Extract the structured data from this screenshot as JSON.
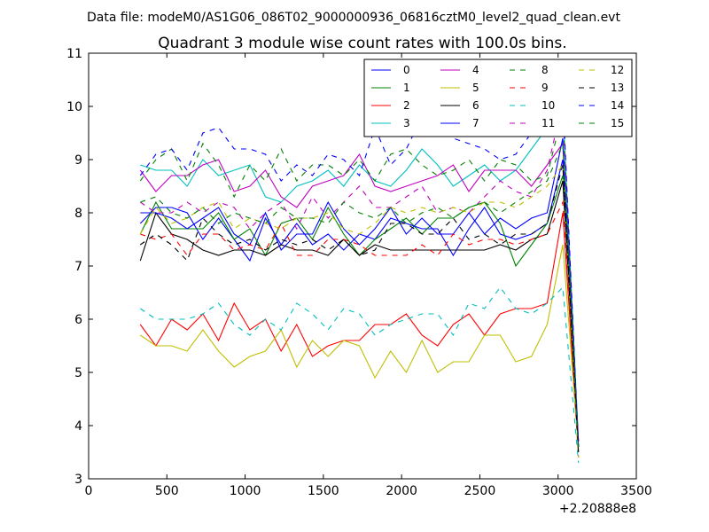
{
  "suptitle": "Data file: modeM0/AS1G06_086T02_9000000936_06816cztM0_level2_quad_clean.evt",
  "offset_label": "+2.20888e8",
  "chart_data": {
    "type": "line",
    "title": "Quadrant 3 module wise count rates with 100.0s bins.",
    "xlabel": "",
    "ylabel": "",
    "xlim": [
      0,
      3500
    ],
    "ylim": [
      3,
      11
    ],
    "x_ticks": [
      0,
      500,
      1000,
      1500,
      2000,
      2500,
      3000,
      3500
    ],
    "y_ticks": [
      3,
      4,
      5,
      6,
      7,
      8,
      9,
      10,
      11
    ],
    "legend_position": "top-right",
    "legend_columns": 4,
    "x": [
      330,
      430,
      530,
      630,
      730,
      830,
      930,
      1030,
      1130,
      1230,
      1330,
      1430,
      1530,
      1630,
      1730,
      1830,
      1930,
      2030,
      2130,
      2230,
      2330,
      2430,
      2530,
      2630,
      2730,
      2830,
      2930,
      3030,
      3130
    ],
    "series": [
      {
        "name": "0",
        "color": "#0000ff",
        "style": "solid",
        "values": [
          7.8,
          8.1,
          8.1,
          8.0,
          7.5,
          7.9,
          7.5,
          7.1,
          7.9,
          7.4,
          7.8,
          7.4,
          7.6,
          7.3,
          7.6,
          7.5,
          7.9,
          7.8,
          7.7,
          7.7,
          7.2,
          7.7,
          8.1,
          7.6,
          7.5,
          7.6,
          7.8,
          9.0,
          3.7
        ]
      },
      {
        "name": "1",
        "color": "#008000",
        "style": "solid",
        "values": [
          7.6,
          8.2,
          7.7,
          7.7,
          7.7,
          8.0,
          7.5,
          7.7,
          7.2,
          7.8,
          7.9,
          7.5,
          8.1,
          7.6,
          7.2,
          7.5,
          7.7,
          7.9,
          7.6,
          7.9,
          7.9,
          8.1,
          8.2,
          7.8,
          7.0,
          7.4,
          7.8,
          8.7,
          3.6
        ]
      },
      {
        "name": "2",
        "color": "#ff0000",
        "style": "solid",
        "values": [
          5.9,
          5.5,
          6.0,
          5.8,
          6.1,
          5.6,
          6.3,
          5.8,
          6.0,
          5.4,
          5.9,
          5.3,
          5.5,
          5.6,
          5.6,
          5.9,
          5.9,
          6.1,
          5.7,
          5.5,
          5.9,
          6.1,
          5.7,
          6.1,
          6.2,
          6.2,
          6.3,
          8.0,
          3.6
        ]
      },
      {
        "name": "3",
        "color": "#00bfbf",
        "style": "solid",
        "values": [
          8.9,
          8.8,
          8.8,
          8.5,
          9.0,
          8.7,
          8.8,
          8.9,
          8.3,
          8.2,
          8.5,
          8.6,
          8.8,
          8.5,
          8.9,
          8.6,
          8.5,
          8.8,
          9.2,
          8.9,
          8.5,
          8.7,
          8.9,
          8.6,
          8.8,
          9.2,
          9.6,
          10.0,
          3.7
        ]
      },
      {
        "name": "4",
        "color": "#bf00bf",
        "style": "solid",
        "values": [
          8.8,
          8.4,
          8.7,
          8.7,
          8.9,
          9.0,
          8.4,
          8.5,
          8.8,
          8.3,
          8.1,
          8.5,
          8.6,
          8.7,
          9.1,
          8.5,
          8.4,
          8.5,
          8.6,
          8.7,
          8.9,
          8.4,
          8.8,
          8.8,
          8.8,
          8.5,
          8.9,
          9.3,
          3.7
        ]
      },
      {
        "name": "5",
        "color": "#bfbf00",
        "style": "solid",
        "values": [
          5.7,
          5.5,
          5.5,
          5.4,
          5.8,
          5.4,
          5.1,
          5.3,
          5.4,
          5.8,
          5.1,
          5.6,
          5.3,
          5.6,
          5.5,
          4.9,
          5.4,
          5.0,
          5.6,
          5.0,
          5.2,
          5.2,
          5.7,
          5.7,
          5.2,
          5.3,
          5.9,
          7.4,
          3.6
        ]
      },
      {
        "name": "6",
        "color": "#000000",
        "style": "solid",
        "values": [
          7.1,
          8.0,
          7.6,
          7.5,
          7.3,
          7.2,
          7.3,
          7.3,
          7.2,
          7.4,
          7.3,
          7.3,
          7.2,
          7.5,
          7.2,
          7.4,
          7.3,
          7.3,
          7.3,
          7.3,
          7.3,
          7.3,
          7.3,
          7.4,
          7.3,
          7.5,
          7.6,
          8.6,
          3.6
        ]
      },
      {
        "name": "7",
        "color": "#0000ff",
        "style": "solid",
        "values": [
          8.0,
          8.0,
          7.9,
          7.7,
          7.9,
          8.1,
          7.6,
          7.4,
          8.0,
          7.3,
          7.6,
          7.6,
          8.2,
          7.7,
          7.4,
          7.7,
          8.1,
          7.6,
          7.9,
          7.6,
          7.6,
          8.0,
          7.6,
          7.9,
          7.7,
          7.9,
          8.0,
          9.4,
          3.6
        ]
      },
      {
        "name": "8",
        "color": "#008000",
        "style": "dashed",
        "values": [
          8.6,
          9.0,
          9.2,
          8.6,
          9.3,
          8.9,
          8.3,
          8.9,
          8.6,
          9.2,
          8.6,
          8.9,
          8.9,
          8.7,
          9.0,
          8.6,
          9.1,
          9.2,
          8.9,
          8.7,
          8.8,
          9.0,
          8.6,
          9.0,
          8.9,
          8.6,
          8.7,
          9.9,
          3.5
        ]
      },
      {
        "name": "9",
        "color": "#ff0000",
        "style": "dashed",
        "values": [
          7.6,
          7.5,
          7.6,
          7.2,
          7.6,
          7.6,
          7.3,
          7.4,
          7.3,
          7.8,
          7.2,
          7.2,
          7.5,
          7.5,
          7.4,
          7.2,
          7.2,
          7.2,
          7.4,
          7.2,
          7.6,
          7.4,
          7.5,
          7.5,
          7.4,
          7.5,
          7.6,
          8.2,
          3.4
        ]
      },
      {
        "name": "10",
        "color": "#00bfbf",
        "style": "dashed",
        "values": [
          6.2,
          6.0,
          6.0,
          6.0,
          6.1,
          6.3,
          5.9,
          5.7,
          6.0,
          5.8,
          6.3,
          6.1,
          5.8,
          6.2,
          6.1,
          5.7,
          5.9,
          6.0,
          6.1,
          6.1,
          5.7,
          6.3,
          6.2,
          6.6,
          6.2,
          6.1,
          6.3,
          6.6,
          3.3
        ]
      },
      {
        "name": "11",
        "color": "#bf00bf",
        "style": "dashed",
        "values": [
          8.2,
          8.0,
          8.0,
          8.2,
          8.0,
          8.2,
          8.1,
          7.7,
          8.0,
          8.2,
          7.7,
          8.3,
          7.9,
          8.2,
          8.5,
          8.1,
          8.1,
          8.3,
          8.5,
          8.0,
          8.1,
          8.0,
          8.3,
          8.6,
          8.4,
          8.3,
          8.8,
          10.1,
          3.5
        ]
      },
      {
        "name": "12",
        "color": "#bfbf00",
        "style": "dashed",
        "values": [
          7.6,
          8.1,
          7.8,
          7.9,
          8.1,
          8.2,
          7.7,
          7.9,
          7.8,
          7.7,
          7.9,
          7.9,
          8.0,
          7.7,
          7.6,
          7.8,
          8.1,
          8.0,
          8.1,
          8.0,
          8.1,
          8.0,
          8.2,
          8.2,
          8.1,
          8.3,
          8.5,
          8.9,
          3.4
        ]
      },
      {
        "name": "13",
        "color": "#000000",
        "style": "dashed",
        "values": [
          7.4,
          7.6,
          7.4,
          7.1,
          7.9,
          7.6,
          7.4,
          7.5,
          7.3,
          7.5,
          7.4,
          7.5,
          7.3,
          7.5,
          7.2,
          7.3,
          7.8,
          7.8,
          7.6,
          7.6,
          7.9,
          7.5,
          7.6,
          7.4,
          7.6,
          7.6,
          7.8,
          8.9,
          3.5
        ]
      },
      {
        "name": "14",
        "color": "#0000ff",
        "style": "dashed",
        "values": [
          8.7,
          9.1,
          9.2,
          8.8,
          9.5,
          9.6,
          9.2,
          9.2,
          9.1,
          8.6,
          8.9,
          8.7,
          9.1,
          9.0,
          8.7,
          9.6,
          8.9,
          9.2,
          9.8,
          9.6,
          9.4,
          9.3,
          9.2,
          9.0,
          9.1,
          9.5,
          9.7,
          10.2,
          3.6
        ]
      },
      {
        "name": "15",
        "color": "#008000",
        "style": "dashed",
        "values": [
          8.2,
          8.3,
          8.0,
          7.9,
          8.1,
          7.8,
          8.0,
          7.9,
          7.8,
          8.1,
          7.9,
          7.9,
          7.8,
          8.2,
          8.0,
          7.9,
          8.1,
          7.8,
          8.0,
          8.1,
          7.9,
          8.1,
          8.2,
          8.0,
          8.2,
          8.4,
          8.6,
          9.3,
          3.5
        ]
      }
    ]
  }
}
